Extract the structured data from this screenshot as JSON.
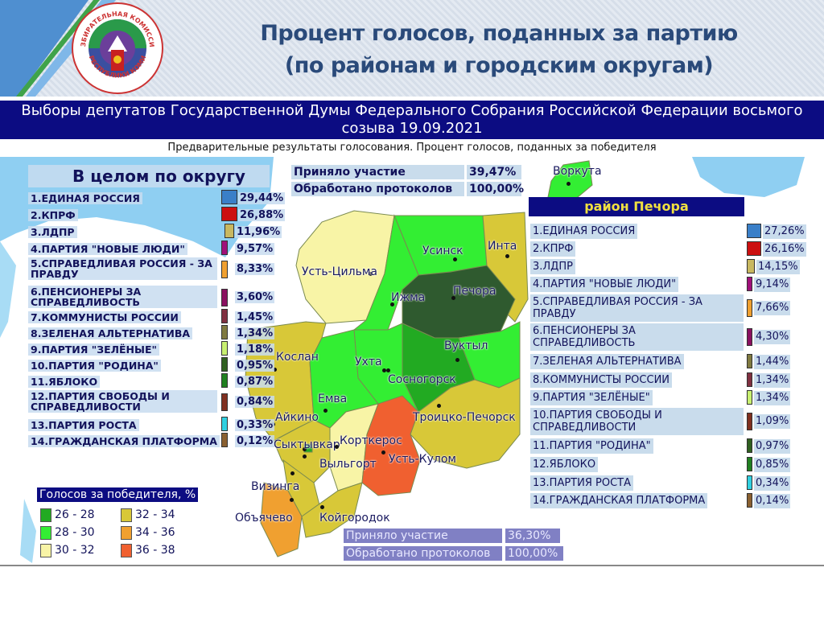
{
  "logo": {
    "top_text": "ИЗБИРАТЕЛЬНАЯ КОМИССИЯ",
    "bottom_text": "РЕСПУБЛИКИ КОМИ"
  },
  "title": {
    "line1": "Процент голосов, поданных за партию",
    "line2": "(по районам и городским округам)"
  },
  "banner": {
    "line1": "Выборы депутатов Государственной Думы Федерального Собрания Российской Федерации восьмого",
    "line2": "созыва 19.09.2021"
  },
  "subtitle": "Предварительные результаты голосования. Процент голосов, поданных за победителя",
  "chart_data": [
    {
      "type": "table",
      "title": "В целом по округу",
      "stats": {
        "turnout_label": "Приняло участие",
        "turnout": "39,47%",
        "processed_label": "Обработано протоколов",
        "processed": "100,00%"
      },
      "rows": [
        {
          "label": "1.ЕДИНАЯ РОССИЯ",
          "value": "29,44%",
          "color": "#3a7fc8"
        },
        {
          "label": "2.КПРФ",
          "value": "26,88%",
          "color": "#cc1010"
        },
        {
          "label": "3.ЛДПР",
          "value": "11,96%",
          "color": "#c8b860"
        },
        {
          "label": "4.ПАРТИЯ \"НОВЫЕ ЛЮДИ\"",
          "value": "9,57%",
          "color": "#a0107a"
        },
        {
          "label": "5.СПРАВЕДЛИВАЯ РОССИЯ - ЗА ПРАВДУ",
          "value": "8,33%",
          "color": "#f0a030"
        },
        {
          "label": "6.ПЕНСИОНЕРЫ ЗА СПРАВЕДЛИВОСТЬ",
          "value": "3,60%",
          "color": "#8a1060"
        },
        {
          "label": "7.КОММУНИСТЫ РОССИИ",
          "value": "1,45%",
          "color": "#803040"
        },
        {
          "label": "8.ЗЕЛЕНАЯ АЛЬТЕРНАТИВА",
          "value": "1,34%",
          "color": "#807a40"
        },
        {
          "label": "9.ПАРТИЯ \"ЗЕЛЁНЫЕ\"",
          "value": "1,18%",
          "color": "#c8f070"
        },
        {
          "label": "10.ПАРТИЯ \"РОДИНА\"",
          "value": "0,95%",
          "color": "#306020"
        },
        {
          "label": "11.ЯБЛОКО",
          "value": "0,87%",
          "color": "#208020"
        },
        {
          "label": "12.ПАРТИЯ СВОБОДЫ И СПРАВЕДЛИВОСТИ",
          "value": "0,84%",
          "color": "#803020"
        },
        {
          "label": "13.ПАРТИЯ РОСТА",
          "value": "0,33%",
          "color": "#30d0e0"
        },
        {
          "label": "14.ГРАЖДАНСКАЯ ПЛАТФОРМА",
          "value": "0,12%",
          "color": "#8a6030"
        }
      ]
    },
    {
      "type": "table",
      "title": "район Печора",
      "stats": {
        "turnout_label": "Приняло участие",
        "turnout": "36,30%",
        "processed_label": "Обработано протоколов",
        "processed": "100,00%"
      },
      "rows": [
        {
          "label": "1.ЕДИНАЯ РОССИЯ",
          "value": "27,26%",
          "color": "#3a7fc8"
        },
        {
          "label": "2.КПРФ",
          "value": "26,16%",
          "color": "#cc1010"
        },
        {
          "label": "3.ЛДПР",
          "value": "14,15%",
          "color": "#c8b860"
        },
        {
          "label": "4.ПАРТИЯ \"НОВЫЕ ЛЮДИ\"",
          "value": "9,14%",
          "color": "#a0107a"
        },
        {
          "label": "5.СПРАВЕДЛИВАЯ РОССИЯ - ЗА ПРАВДУ",
          "value": "7,66%",
          "color": "#f0a030"
        },
        {
          "label": "6.ПЕНСИОНЕРЫ ЗА СПРАВЕДЛИВОСТЬ",
          "value": "4,30%",
          "color": "#8a1060"
        },
        {
          "label": "7.ЗЕЛЕНАЯ АЛЬТЕРНАТИВА",
          "value": "1,44%",
          "color": "#807a40"
        },
        {
          "label": "8.КОММУНИСТЫ РОССИИ",
          "value": "1,34%",
          "color": "#803040"
        },
        {
          "label": "9.ПАРТИЯ \"ЗЕЛЁНЫЕ\"",
          "value": "1,34%",
          "color": "#c8f070"
        },
        {
          "label": "10.ПАРТИЯ СВОБОДЫ И СПРАВЕДЛИВОСТИ",
          "value": "1,09%",
          "color": "#803020"
        },
        {
          "label": "11.ПАРТИЯ \"РОДИНА\"",
          "value": "0,97%",
          "color": "#306020"
        },
        {
          "label": "12.ЯБЛОКО",
          "value": "0,85%",
          "color": "#208020"
        },
        {
          "label": "13.ПАРТИЯ РОСТА",
          "value": "0,34%",
          "color": "#30d0e0"
        },
        {
          "label": "14.ГРАЖДАНСКАЯ ПЛАТФОРМА",
          "value": "0,14%",
          "color": "#8a6030"
        }
      ]
    },
    {
      "type": "choropleth-map",
      "legend_title": "Голосов за победителя, %",
      "legend": [
        {
          "range": "26 - 28",
          "color": "#22aa22"
        },
        {
          "range": "28 - 30",
          "color": "#33ee33"
        },
        {
          "range": "30 - 32",
          "color": "#f8f4a6"
        },
        {
          "range": "32 - 34",
          "color": "#d8c838"
        },
        {
          "range": "34 - 36",
          "color": "#f0a030"
        },
        {
          "range": "36 - 38",
          "color": "#f06030"
        }
      ],
      "regions": [
        {
          "name": "Воркута",
          "bin": "28 - 30"
        },
        {
          "name": "Усть-Цильма",
          "bin": "30 - 32"
        },
        {
          "name": "Усинск",
          "bin": "28 - 30"
        },
        {
          "name": "Инта",
          "bin": "32 - 34"
        },
        {
          "name": "Ижма",
          "bin": "28 - 30"
        },
        {
          "name": "Печора",
          "bin": "26 - 28",
          "selected": true
        },
        {
          "name": "Вуктыл",
          "bin": "28 - 30"
        },
        {
          "name": "Ухта",
          "bin": "28 - 30"
        },
        {
          "name": "Сосногорск",
          "bin": "26 - 28"
        },
        {
          "name": "Кослан",
          "bin": "32 - 34"
        },
        {
          "name": "Емва",
          "bin": "28 - 30"
        },
        {
          "name": "Троицко-Печорск",
          "bin": "32 - 34"
        },
        {
          "name": "Айкино",
          "bin": "32 - 34"
        },
        {
          "name": "Сыктывкар",
          "bin": "26 - 28"
        },
        {
          "name": "Корткерос",
          "bin": "30 - 32"
        },
        {
          "name": "Выльгорт",
          "bin": "32 - 34"
        },
        {
          "name": "Усть-Кулом",
          "bin": "36 - 38"
        },
        {
          "name": "Визинга",
          "bin": "32 - 34"
        },
        {
          "name": "Объячево",
          "bin": "34 - 36"
        },
        {
          "name": "Койгородок",
          "bin": "32 - 34"
        }
      ]
    }
  ]
}
